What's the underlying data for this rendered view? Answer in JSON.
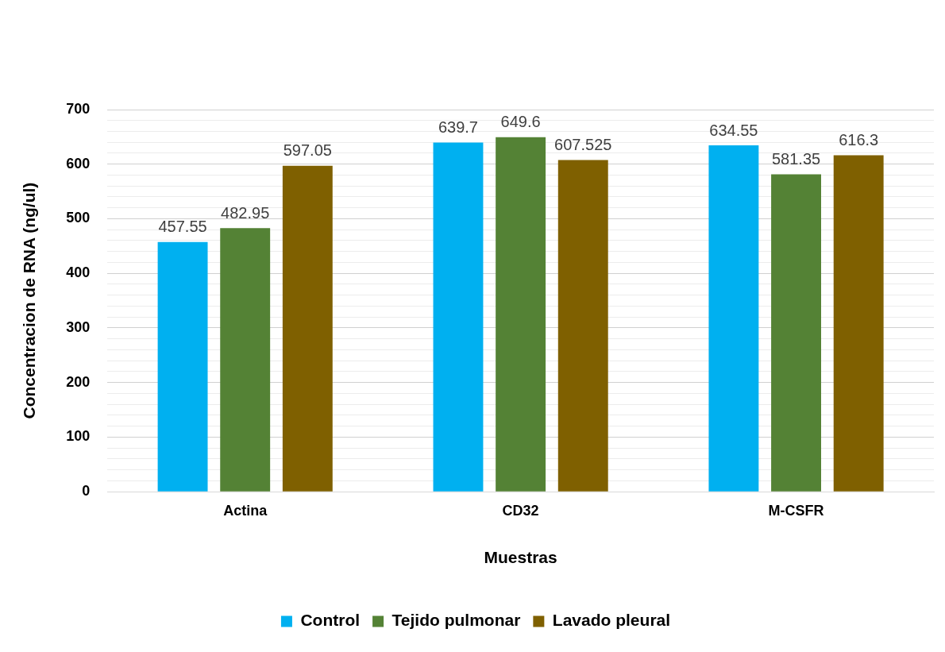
{
  "chart_data": {
    "type": "bar",
    "xlabel": "Muestras",
    "ylabel": "Concentracion de RNA (ng/ul)",
    "categories": [
      "Actina",
      "CD32",
      "M-CSFR"
    ],
    "series": [
      {
        "name": "Control",
        "color": "#00b0f0",
        "values": [
          457.55,
          639.7,
          634.55
        ]
      },
      {
        "name": "Tejido pulmonar",
        "color": "#548235",
        "values": [
          482.95,
          649.6,
          581.35
        ]
      },
      {
        "name": "Lavado pleural",
        "color": "#7f6000",
        "values": [
          597.05,
          607.525,
          616.3
        ]
      }
    ],
    "ylim": [
      0,
      700
    ],
    "yticks": [
      0,
      {
        "value": 20,
        "label": null
      },
      {
        "value": 40,
        "label": null
      },
      {
        "value": 60,
        "label": null
      },
      {
        "value": 80,
        "label": null
      },
      100,
      {
        "value": 120,
        "label": null
      },
      {
        "value": 140,
        "label": null
      },
      {
        "value": 160,
        "label": null
      },
      {
        "value": 180,
        "label": null
      },
      200,
      {
        "value": 220,
        "label": null
      },
      {
        "value": 240,
        "label": null
      },
      {
        "value": 260,
        "label": null
      },
      {
        "value": 280,
        "label": null
      },
      300,
      {
        "value": 320,
        "label": null
      },
      {
        "value": 340,
        "label": null
      },
      {
        "value": 360,
        "label": null
      },
      {
        "value": 380,
        "label": null
      },
      400,
      {
        "value": 420,
        "label": null
      },
      {
        "value": 440,
        "label": null
      },
      {
        "value": 460,
        "label": null
      },
      {
        "value": 480,
        "label": null
      },
      500,
      {
        "value": 520,
        "label": null
      },
      {
        "value": 540,
        "label": null
      },
      {
        "value": 560,
        "label": null
      },
      {
        "value": 580,
        "label": null
      },
      600,
      {
        "value": 620,
        "label": null
      },
      {
        "value": 640,
        "label": null
      },
      {
        "value": 660,
        "label": null
      },
      {
        "value": 680,
        "label": null
      },
      700
    ],
    "grid": "y",
    "legend": "bottom",
    "data_labels": true
  }
}
